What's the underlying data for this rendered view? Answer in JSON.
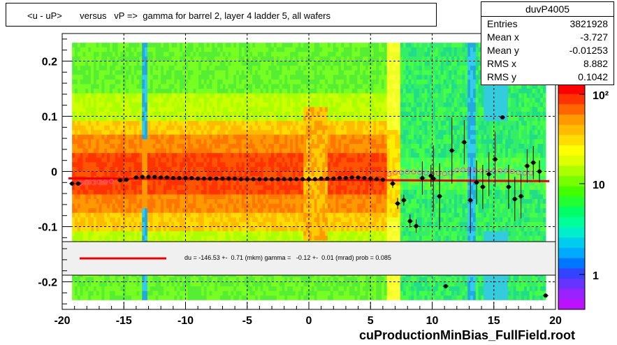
{
  "title": "<u - uP>       versus   vP =>  gamma for barrel 2, layer 4 ladder 5, all wafers",
  "stats": {
    "name": "duvP4005",
    "rows": [
      {
        "label": "Entries",
        "value": "3821928"
      },
      {
        "label": "Mean x",
        "value": "-3.727"
      },
      {
        "label": "Mean y",
        "value": "-0.01253"
      },
      {
        "label": "RMS x",
        "value": "8.882"
      },
      {
        "label": "RMS y",
        "value": "0.1042"
      }
    ]
  },
  "legend_text": "du = -146.53 +-  0.71 (mkm) gamma =   -0.12 +-  0.01 (mrad) prob = 0.085",
  "footer": "cuProductionMinBias_FullField.root",
  "chart_data": {
    "type": "heatmap",
    "xlim": [
      -20,
      20
    ],
    "ylim": [
      -0.25,
      0.25
    ],
    "x_ticks": [
      "-20",
      "-15",
      "-10",
      "-5",
      "0",
      "5",
      "10",
      "15",
      "20"
    ],
    "y_ticks": [
      "0.2",
      "0.1",
      "0",
      "-0.1",
      "-0.2"
    ],
    "z_scale": "log",
    "z_ticks": [
      "10²",
      "10",
      "1"
    ],
    "grid": true,
    "fit_line": {
      "x": [
        -19.5,
        19.5
      ],
      "y": [
        -0.0125,
        -0.0175
      ]
    },
    "profile_points": [
      {
        "x": -19.2,
        "y": -0.022
      },
      {
        "x": -18.7,
        "y": -0.022
      },
      {
        "x": -15.3,
        "y": -0.016
      },
      {
        "x": -14.8,
        "y": -0.015
      },
      {
        "x": -14.0,
        "y": -0.011
      },
      {
        "x": -13.5,
        "y": -0.01
      },
      {
        "x": -13.0,
        "y": -0.01
      },
      {
        "x": -12.5,
        "y": -0.01
      },
      {
        "x": -12.0,
        "y": -0.011
      },
      {
        "x": -11.5,
        "y": -0.011
      },
      {
        "x": -11.0,
        "y": -0.012
      },
      {
        "x": -10.5,
        "y": -0.012
      },
      {
        "x": -10.0,
        "y": -0.012
      },
      {
        "x": -9.5,
        "y": -0.012
      },
      {
        "x": -9.0,
        "y": -0.013
      },
      {
        "x": -8.5,
        "y": -0.013
      },
      {
        "x": -8.0,
        "y": -0.013
      },
      {
        "x": -7.5,
        "y": -0.013
      },
      {
        "x": -7.0,
        "y": -0.013
      },
      {
        "x": -6.5,
        "y": -0.013
      },
      {
        "x": -6.0,
        "y": -0.013
      },
      {
        "x": -5.5,
        "y": -0.014
      },
      {
        "x": -5.0,
        "y": -0.014
      },
      {
        "x": -4.5,
        "y": -0.014
      },
      {
        "x": -4.0,
        "y": -0.014
      },
      {
        "x": -3.5,
        "y": -0.014
      },
      {
        "x": -3.0,
        "y": -0.014
      },
      {
        "x": -2.5,
        "y": -0.014
      },
      {
        "x": -2.0,
        "y": -0.014
      },
      {
        "x": -1.5,
        "y": -0.014
      },
      {
        "x": -1.0,
        "y": -0.014
      },
      {
        "x": -0.5,
        "y": -0.014
      },
      {
        "x": 0.0,
        "y": -0.014
      },
      {
        "x": 0.5,
        "y": -0.014
      },
      {
        "x": 1.0,
        "y": -0.013
      },
      {
        "x": 1.5,
        "y": -0.013
      },
      {
        "x": 2.0,
        "y": -0.013
      },
      {
        "x": 2.5,
        "y": -0.012
      },
      {
        "x": 3.0,
        "y": -0.012
      },
      {
        "x": 3.5,
        "y": -0.011
      },
      {
        "x": 4.0,
        "y": -0.011
      },
      {
        "x": 4.5,
        "y": -0.012
      },
      {
        "x": 5.0,
        "y": -0.013
      },
      {
        "x": 5.5,
        "y": -0.014
      },
      {
        "x": 6.0,
        "y": -0.015
      },
      {
        "x": 6.8,
        "y": -0.022,
        "err": 0.008
      },
      {
        "x": 7.2,
        "y": -0.058,
        "err": 0.01
      },
      {
        "x": 7.7,
        "y": -0.052,
        "err": 0.01
      },
      {
        "x": 8.2,
        "y": -0.09,
        "err": 0.012
      },
      {
        "x": 8.7,
        "y": -0.099,
        "err": 0.012
      },
      {
        "x": 9.2,
        "y": -0.012,
        "err": 0.03
      },
      {
        "x": 9.9,
        "y": -0.008,
        "err": 0.02
      },
      {
        "x": 10.1,
        "y": -0.013,
        "err": 0.06
      },
      {
        "x": 10.6,
        "y": -0.045,
        "err": 0.06
      },
      {
        "x": 11.1,
        "y": -0.208,
        "err": 0.0
      },
      {
        "x": 11.6,
        "y": 0.038,
        "err": 0.06
      },
      {
        "x": 12.6,
        "y": 0.053,
        "err": 0.04
      },
      {
        "x": 13.1,
        "y": -0.052,
        "err": 0.06
      },
      {
        "x": 13.6,
        "y": -0.02,
        "err": 0.04
      },
      {
        "x": 14.1,
        "y": -0.028,
        "err": 0.04
      },
      {
        "x": 14.6,
        "y": -0.005,
        "err": 0.04
      },
      {
        "x": 15.1,
        "y": 0.022,
        "err": 0.05
      },
      {
        "x": 15.7,
        "y": 0.098,
        "err": 0.0
      },
      {
        "x": 16.2,
        "y": -0.028,
        "err": 0.04
      },
      {
        "x": 16.7,
        "y": -0.05,
        "err": 0.04
      },
      {
        "x": 17.2,
        "y": -0.045,
        "err": 0.04
      },
      {
        "x": 17.7,
        "y": 0.01,
        "err": 0.03
      },
      {
        "x": 18.2,
        "y": 0.016,
        "err": 0.03
      },
      {
        "x": 18.7,
        "y": 0.0,
        "err": 0.02
      },
      {
        "x": 19.2,
        "y": -0.225,
        "err": 0.0
      }
    ],
    "open_circles": [
      {
        "x": -18.5,
        "y": -0.021
      },
      {
        "x": -18.0,
        "y": -0.02
      },
      {
        "x": -17.5,
        "y": -0.02
      },
      {
        "x": -17.0,
        "y": -0.019
      },
      {
        "x": -16.5,
        "y": -0.019
      },
      {
        "x": -16.0,
        "y": -0.018
      },
      {
        "x": 6.5,
        "y": -0.005
      },
      {
        "x": 7.0,
        "y": -0.002
      },
      {
        "x": 7.5,
        "y": -0.002
      },
      {
        "x": 8.0,
        "y": -0.001
      },
      {
        "x": 8.5,
        "y": -0.001
      },
      {
        "x": 9.0,
        "y": -0.002
      },
      {
        "x": 9.5,
        "y": -0.003
      },
      {
        "x": 10.0,
        "y": -0.004
      },
      {
        "x": 10.5,
        "y": -0.004
      },
      {
        "x": 11.0,
        "y": -0.004
      },
      {
        "x": 11.5,
        "y": -0.003
      },
      {
        "x": 12.0,
        "y": 0.002
      },
      {
        "x": 12.5,
        "y": 0.003
      },
      {
        "x": 13.0,
        "y": 0.003
      },
      {
        "x": 13.5,
        "y": 0.001
      },
      {
        "x": 14.0,
        "y": 0.001
      },
      {
        "x": 14.5,
        "y": 0.0
      },
      {
        "x": 15.0,
        "y": 0.001
      },
      {
        "x": 15.5,
        "y": 0.001
      },
      {
        "x": 16.0,
        "y": 0.001
      },
      {
        "x": 16.5,
        "y": 0.0
      },
      {
        "x": 17.0,
        "y": -0.002
      },
      {
        "x": 17.5,
        "y": -0.003
      },
      {
        "x": 18.0,
        "y": -0.003
      }
    ]
  }
}
